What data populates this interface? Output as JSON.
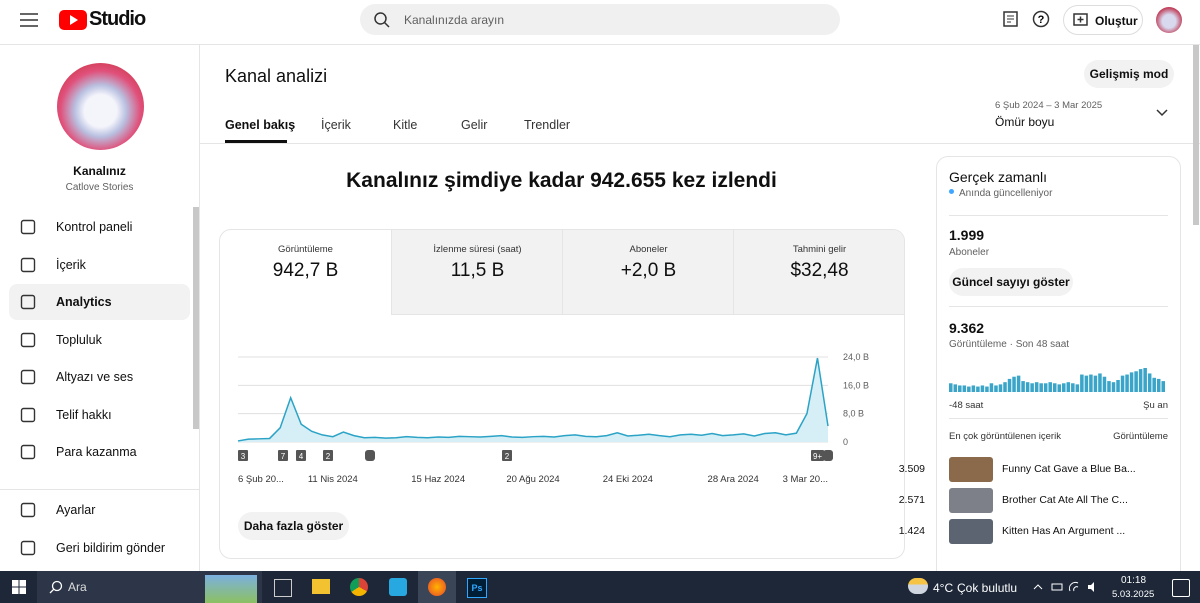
{
  "header": {
    "logo": "Studio",
    "search_placeholder": "Kanalınızda arayın",
    "create_button": "Oluştur"
  },
  "sidebar": {
    "channel_name": "Kanalınız",
    "channel_handle": "Catlove Stories",
    "nav": [
      "Kontrol paneli",
      "İçerik",
      "Analytics",
      "Topluluk",
      "Altyazı ve ses",
      "Telif hakkı",
      "Para kazanma"
    ],
    "footer": [
      "Ayarlar",
      "Geri bildirim gönder"
    ]
  },
  "main": {
    "title": "Kanal analizi",
    "advanced_button": "Gelişmiş mod",
    "tabs": [
      "Genel bakış",
      "İçerik",
      "Kitle",
      "Gelir",
      "Trendler"
    ],
    "date_range": "6 Şub 2024 – 3 Mar 2025",
    "period": "Ömür boyu"
  },
  "overview": {
    "headline": "Kanalınız şimdiye kadar 942.655 kez izlendi",
    "metrics": [
      {
        "label": "Görüntüleme",
        "value": "942,7 B"
      },
      {
        "label": "İzlenme süresi (saat)",
        "value": "11,5 B"
      },
      {
        "label": "Aboneler",
        "value": "+2,0 B"
      },
      {
        "label": "Tahmini gelir",
        "value": "$32,48"
      }
    ],
    "markers": [
      "3",
      "7",
      "4",
      "2",
      "2",
      "9+"
    ],
    "more_button": "Daha fazla göster"
  },
  "chart_data": [
    {
      "type": "line",
      "color": "#2ba3c6",
      "fill": "#d6eef5",
      "categories": [
        "6 Şub 20...",
        null,
        null,
        null,
        null,
        null,
        null,
        null,
        null,
        "11 Nis 2024",
        null,
        null,
        null,
        null,
        null,
        null,
        null,
        null,
        null,
        "15 Haz 2024",
        null,
        null,
        null,
        null,
        null,
        null,
        null,
        null,
        "20 Ağu 2024",
        null,
        null,
        null,
        null,
        null,
        null,
        null,
        null,
        "24 Eki 2024",
        null,
        null,
        null,
        null,
        null,
        null,
        null,
        null,
        null,
        "28 Ara 2024",
        null,
        null,
        null,
        null,
        null,
        null,
        null,
        null,
        "3 Mar 20..."
      ],
      "values": [
        0.3,
        0.8,
        0.9,
        1.0,
        4.0,
        12.5,
        5.0,
        3.0,
        2.0,
        1.5,
        2.8,
        1.8,
        1.2,
        1.3,
        1.1,
        1.2,
        1.5,
        1.3,
        1.2,
        1.4,
        1.3,
        1.6,
        1.5,
        1.4,
        1.6,
        1.8,
        1.4,
        1.3,
        1.5,
        1.6,
        1.4,
        1.8,
        2.0,
        1.6,
        1.5,
        1.8,
        2.6,
        1.7,
        1.9,
        2.2,
        1.8,
        1.5,
        2.0,
        2.2,
        1.9,
        2.4,
        1.8,
        2.0,
        2.3,
        1.7,
        2.4,
        2.6,
        2.0,
        2.5,
        8.0,
        23.7,
        4.5
      ],
      "ylim": [
        0,
        24
      ],
      "yticks": [
        0,
        {
          "value": 8,
          "label": "8,0 B"
        },
        {
          "value": 16,
          "label": "16,0 B"
        },
        {
          "value": 24,
          "label": "24,0 B"
        }
      ],
      "grid": true
    },
    {
      "type": "bar",
      "color": "#3aa5c8",
      "values": [
        8,
        7,
        6,
        6,
        5,
        6,
        5,
        6,
        5,
        8,
        6,
        7,
        9,
        12,
        14,
        15,
        10,
        9,
        8,
        9,
        8,
        8,
        9,
        8,
        7,
        8,
        9,
        8,
        7,
        16,
        15,
        16,
        15,
        17,
        14,
        10,
        9,
        11,
        15,
        16,
        18,
        19,
        21,
        22,
        17,
        13,
        12,
        10
      ]
    }
  ],
  "realtime": {
    "title": "Gerçek zamanlı",
    "subtitle": "Anında güncelleniyor",
    "subscribers": "1.999",
    "subscribers_label": "Aboneler",
    "show_button": "Güncel sayıyı göster",
    "views": "9.362",
    "views_label": "Görüntüleme · Son 48 saat",
    "start_label": "-48 saat",
    "end_label": "Şu an",
    "top_header": "En çok görüntülenen içerik",
    "top_metric": "Görüntüleme",
    "top_items": [
      {
        "title": "Funny Cat Gave a Blue Ba...",
        "views": "3.509"
      },
      {
        "title": "Brother Cat Ate All The C...",
        "views": "2.571"
      },
      {
        "title": "Kitten Has An Argument ...",
        "views": "1.424"
      }
    ]
  },
  "taskbar": {
    "search": "Ara",
    "temperature": "4°C",
    "weather": "Çok bulutlu",
    "time": "01:18",
    "date": "5.03.2025"
  }
}
